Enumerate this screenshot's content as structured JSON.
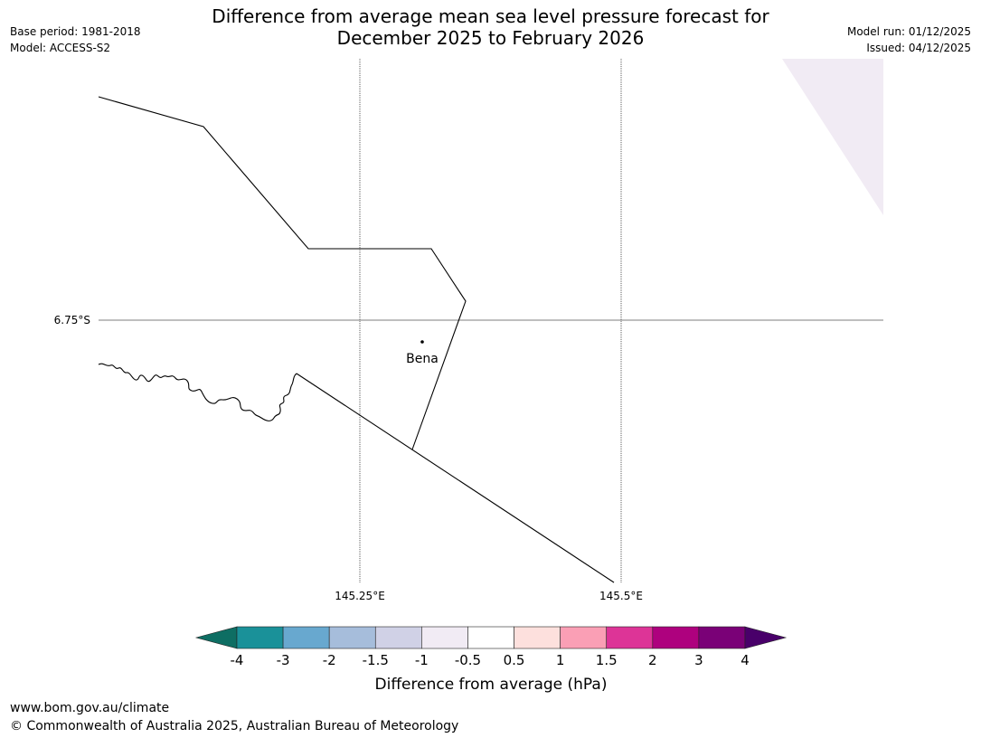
{
  "title": {
    "line1": "Difference from average mean sea level pressure forecast for",
    "line2": "December 2025 to February 2026"
  },
  "meta": {
    "base_period": "Base period: 1981-2018",
    "model": "Model: ACCESS-S2",
    "model_run": "Model run: 01/12/2025",
    "issued": "Issued: 04/12/2025"
  },
  "map": {
    "lat_label": "6.75°S",
    "lon_labels": [
      "145.25°E",
      "145.5°E"
    ],
    "place": "Bena"
  },
  "colorbar": {
    "ticks": [
      "-4",
      "-3",
      "-2",
      "-1.5",
      "-1",
      "-0.5",
      "0.5",
      "1",
      "1.5",
      "2",
      "3",
      "4"
    ],
    "colors": [
      "#0e6e63",
      "#1a9199",
      "#68a8cf",
      "#a6bddb",
      "#d0d1e6",
      "#f1ebf4",
      "#ffffff",
      "#fde0dd",
      "#fa9fb5",
      "#dd3497",
      "#ae017e",
      "#7a0177",
      "#49006a"
    ],
    "label": "Difference from average (hPa)"
  },
  "footer": {
    "url": "www.bom.gov.au/climate",
    "copyright": "© Commonwealth of Australia 2025, Australian Bureau of Meteorology"
  }
}
